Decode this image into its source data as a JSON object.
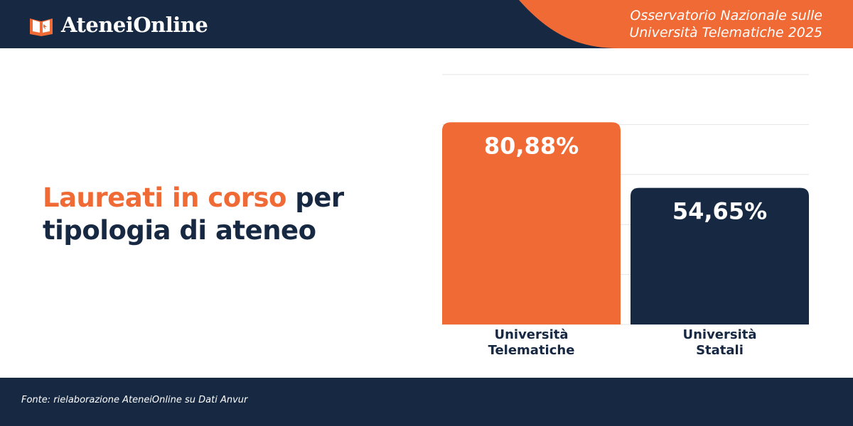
{
  "header": {
    "logo": "AteneiOnline",
    "subtitle": "Osservatorio Nazionale sulle Università Telematiche 2025"
  },
  "chart_data": {
    "type": "bar",
    "title_highlight": "Laureati in corso",
    "title_rest": "per tipologia di ateneo",
    "categories": [
      "Università Telematiche",
      "Università Statali"
    ],
    "values": [
      80.88,
      54.65
    ],
    "value_labels": [
      "80,88%",
      "54,65%"
    ],
    "colors": [
      "#f06a35",
      "#172842"
    ],
    "ylim": [
      0,
      100
    ],
    "yticks": [
      0,
      20,
      40,
      60,
      80,
      100
    ],
    "grid": true
  },
  "footer": {
    "source": "Fonte: rielaborazione AteneiOnline su Dati Anvur"
  }
}
